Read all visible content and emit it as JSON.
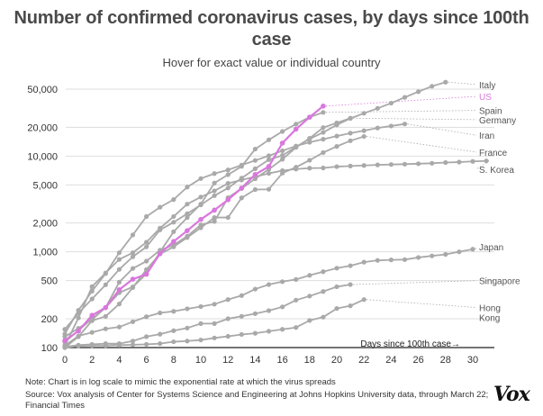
{
  "title": "Number of confirmed coronavirus cases, by days since 100th case",
  "subtitle": "Hover for exact value or individual country",
  "note": "Note: Chart is in log scale to mimic the exponential rate at which the virus spreads",
  "source": "Source: Vox analysis of Center for Systems Science and Engineering at Johns Hopkins University data, through March 22; Financial Times",
  "brand": "Vox",
  "colors": {
    "highlight": "#d977dd",
    "series": "#a9a9a9",
    "grid": "#dddddd",
    "axis": "#222222"
  },
  "chart_data": {
    "type": "line",
    "yscale": "log",
    "ylim": [
      100,
      60000
    ],
    "xlim": [
      0,
      31
    ],
    "x_ticks": [
      0,
      2,
      4,
      6,
      8,
      10,
      12,
      14,
      16,
      18,
      20,
      22,
      24,
      26,
      28,
      30
    ],
    "y_ticks": [
      100,
      200,
      500,
      1000,
      2000,
      5000,
      10000,
      20000,
      50000
    ],
    "y_tick_labels": [
      "100",
      "200",
      "500",
      "1,000",
      "2,000",
      "5,000",
      "10,000",
      "20,000",
      "50,000"
    ],
    "xlabel": "Days since 100th case→",
    "grid": "horizontal",
    "series": [
      {
        "name": "Italy",
        "highlight": false,
        "values": [
          155,
          229,
          322,
          453,
          655,
          888,
          1128,
          1694,
          2036,
          2502,
          3089,
          3858,
          4636,
          5883,
          7375,
          9172,
          10149,
          12462,
          15113,
          17660,
          21157,
          24747,
          27980,
          31506,
          35713,
          41035,
          47021,
          53578,
          59138
        ]
      },
      {
        "name": "Spain",
        "highlight": false,
        "values": [
          114,
          151,
          200,
          261,
          374,
          430,
          589,
          999,
          1622,
          2277,
          3146,
          5232,
          6391,
          7798,
          11826,
          14769,
          18077,
          21571,
          25496,
          28603
        ]
      },
      {
        "name": "Germany",
        "highlight": false,
        "values": [
          130,
          159,
          196,
          262,
          482,
          670,
          799,
          1040,
          1176,
          1457,
          1908,
          2078,
          3675,
          4585,
          5795,
          7272,
          9257,
          12327,
          15320,
          19848,
          22213,
          24873
        ]
      },
      {
        "name": "Iran",
        "highlight": false,
        "values": [
          139,
          245,
          388,
          593,
          978,
          1501,
          2336,
          2922,
          3513,
          4747,
          5823,
          6566,
          7161,
          8042,
          9000,
          10075,
          11364,
          12729,
          13938,
          14991,
          16169,
          17361,
          18407,
          19644,
          20610,
          21638
        ]
      },
      {
        "name": "France",
        "highlight": false,
        "values": [
          100,
          130,
          191,
          212,
          285,
          423,
          653,
          949,
          1126,
          1412,
          1784,
          2281,
          2281,
          3661,
          4469,
          4499,
          6633,
          7652,
          9043,
          10871,
          12612,
          14459,
          16018
        ]
      },
      {
        "name": "S. Korea",
        "highlight": false,
        "values": [
          104,
          204,
          433,
          602,
          833,
          977,
          1261,
          1766,
          2337,
          3150,
          3736,
          4335,
          5186,
          5621,
          6088,
          6593,
          7041,
          7314,
          7478,
          7513,
          7755,
          7869,
          7979,
          8086,
          8162,
          8236,
          8320,
          8413,
          8565,
          8652,
          8799,
          8897
        ]
      },
      {
        "name": "Japan",
        "highlight": false,
        "values": [
          105,
          132,
          144,
          157,
          164,
          186,
          210,
          230,
          239,
          254,
          268,
          284,
          317,
          349,
          408,
          455,
          488,
          514,
          568,
          620,
          675,
          716,
          780,
          814,
          824,
          829,
          873,
          907,
          940,
          1000,
          1065
        ]
      },
      {
        "name": "Singapore",
        "highlight": false,
        "values": [
          102,
          106,
          108,
          110,
          110,
          117,
          130,
          138,
          150,
          160,
          178,
          178,
          200,
          212,
          226,
          243,
          266,
          313,
          345,
          385,
          432,
          455
        ]
      },
      {
        "name": "Hong Kong",
        "highlight": false,
        "values": [
          100,
          104,
          105,
          105,
          106,
          107,
          108,
          110,
          115,
          117,
          120,
          126,
          131,
          137,
          141,
          148,
          155,
          162,
          192,
          208,
          256,
          273,
          317
        ]
      },
      {
        "name": "US",
        "highlight": true,
        "values": [
          118,
          149,
          217,
          262,
          402,
          518,
          583,
          959,
          1281,
          1663,
          2179,
          2727,
          3499,
          4632,
          6421,
          7783,
          13677,
          19100,
          25489,
          33276
        ]
      }
    ],
    "label_positions": {
      "Italy": {
        "value": 56000
      },
      "US": {
        "value": 42000
      },
      "Spain": {
        "value": 30000
      },
      "Germany": {
        "value": 24000
      },
      "Iran": {
        "value": 16500
      },
      "France": {
        "value": 11000
      },
      "S. Korea": {
        "value": 7300
      },
      "Japan": {
        "value": 1130
      },
      "Singapore": {
        "value": 500
      },
      "Hong Kong": {
        "value": 262,
        "line2": 206
      }
    }
  }
}
